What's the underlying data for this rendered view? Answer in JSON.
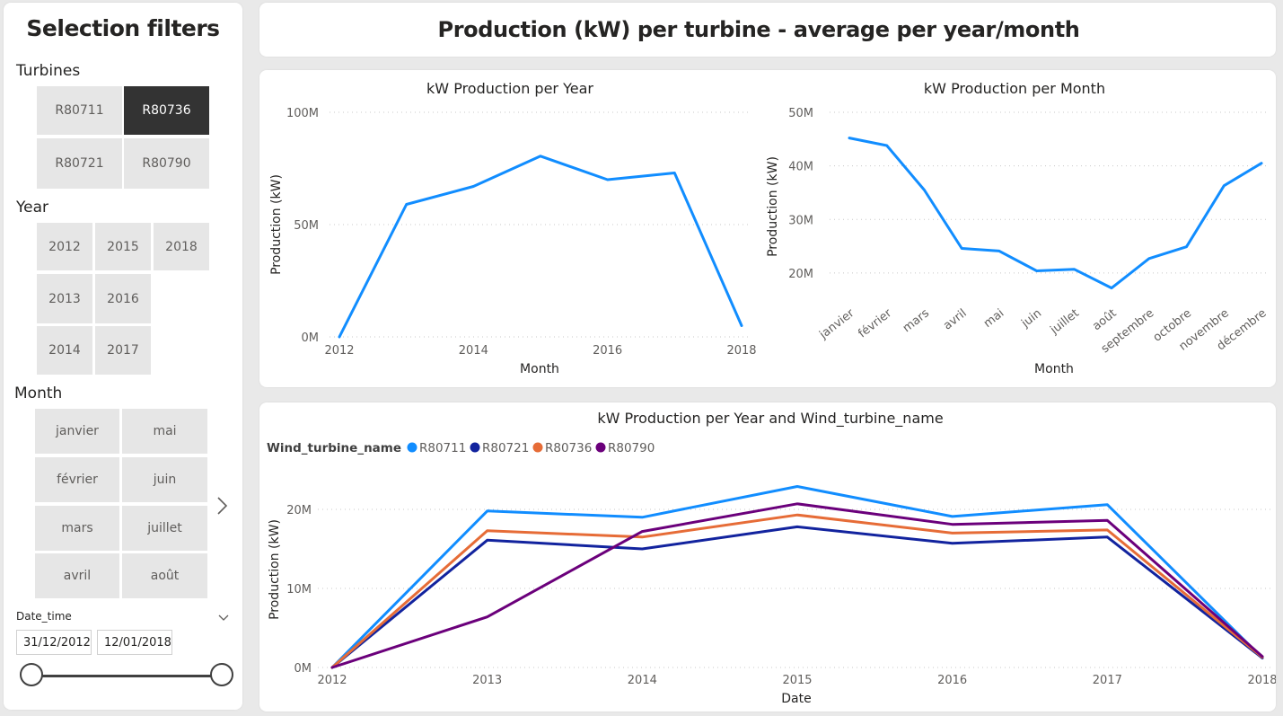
{
  "filters": {
    "title": "Selection filters",
    "turbines": {
      "label": "Turbines",
      "items": [
        "R80711",
        "R80736",
        "R80721",
        "R80790"
      ],
      "selected": "R80736"
    },
    "year": {
      "label": "Year",
      "items": [
        "2012",
        "2015",
        "2018",
        "2013",
        "2016",
        "2014",
        "2017"
      ]
    },
    "month": {
      "label": "Month",
      "items": [
        "janvier",
        "mai",
        "février",
        "juin",
        "mars",
        "juillet",
        "avril",
        "août"
      ]
    },
    "date_time": {
      "label": "Date_time",
      "start": "31/12/2012",
      "end": "12/01/2018"
    }
  },
  "header": {
    "title": "Production (kW) per turbine - average per year/month"
  },
  "colors": {
    "primary": "#118DFF",
    "R80711": "#118DFF",
    "R80721": "#12239E",
    "R80736": "#E66C37",
    "R80790": "#6B007B",
    "selected_tile": "#333333"
  },
  "chart_data": [
    {
      "id": "year",
      "type": "line",
      "title": "kW Production per Year",
      "xlabel": "Month",
      "ylabel": "Production (kW)",
      "x": [
        2012,
        2013,
        2014,
        2015,
        2016,
        2017,
        2018
      ],
      "x_ticks": [
        "2012",
        "2014",
        "2016",
        "2018"
      ],
      "y_ticks": [
        "0M",
        "50M",
        "100M"
      ],
      "ylim": [
        0,
        100000000
      ],
      "grid": true,
      "series": [
        {
          "values": [
            0,
            59000000,
            67000000,
            80500000,
            70000000,
            73000000,
            5000000
          ]
        }
      ]
    },
    {
      "id": "month",
      "type": "line",
      "title": "kW Production per Month",
      "xlabel": "Month",
      "ylabel": "Production (kW)",
      "categories": [
        "janvier",
        "février",
        "mars",
        "avril",
        "mai",
        "juin",
        "juillet",
        "août",
        "septembre",
        "octobre",
        "novembre",
        "décembre"
      ],
      "y_ticks": [
        "20M",
        "30M",
        "40M",
        "50M"
      ],
      "ylim": [
        12000000,
        50000000
      ],
      "grid": true,
      "series": [
        {
          "values": [
            45200000,
            43800000,
            35500000,
            24600000,
            24100000,
            20400000,
            20700000,
            17200000,
            22700000,
            24900000,
            36300000,
            40500000
          ]
        }
      ]
    },
    {
      "id": "year_turbine",
      "type": "line",
      "title": "kW Production per Year and Wind_turbine_name",
      "legend_title": "Wind_turbine_name",
      "legend_position": "top-left",
      "xlabel": "Date",
      "ylabel": "Production (kW)",
      "x": [
        2012,
        2013,
        2014,
        2015,
        2016,
        2017,
        2018
      ],
      "x_ticks": [
        "2012",
        "2013",
        "2014",
        "2015",
        "2016",
        "2017",
        "2018"
      ],
      "y_ticks": [
        "0M",
        "10M",
        "20M"
      ],
      "ylim": [
        0,
        25000000
      ],
      "grid": true,
      "series": [
        {
          "name": "R80711",
          "values": [
            0,
            19800000,
            19000000,
            22900000,
            19100000,
            20600000,
            1200000
          ]
        },
        {
          "name": "R80721",
          "values": [
            0,
            16100000,
            15000000,
            17800000,
            15700000,
            16500000,
            1200000
          ]
        },
        {
          "name": "R80736",
          "values": [
            0,
            17300000,
            16500000,
            19300000,
            17000000,
            17400000,
            1300000
          ]
        },
        {
          "name": "R80790",
          "values": [
            0,
            6400000,
            17200000,
            20700000,
            18100000,
            18600000,
            1400000
          ]
        }
      ]
    }
  ]
}
